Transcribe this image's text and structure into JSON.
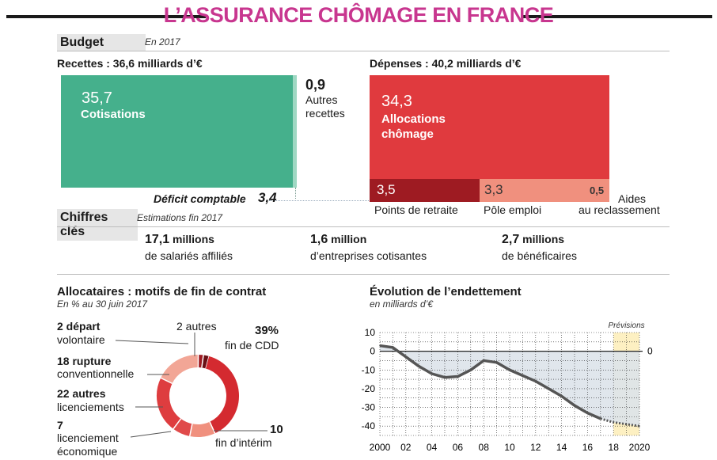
{
  "title": "L’ASSURANCE CHÔMAGE EN FRANCE",
  "budget": {
    "tag": "Budget",
    "note": "En 2017",
    "recettes_header": "Recettes : 36,6 milliards d’€",
    "depenses_header": "Dépenses : 40,2 milliards d’€",
    "cotisations": {
      "value": "35,7",
      "label": "Cotisations"
    },
    "autres_recettes": {
      "value": "0,9",
      "label_line1": "Autres",
      "label_line2": "recettes"
    },
    "deficit": {
      "label": "Déficit comptable",
      "value": "3,4"
    },
    "allocations": {
      "value": "34,3",
      "label_line1": "Allocations",
      "label_line2": "chômage"
    },
    "points_retraite": {
      "value": "3,5",
      "label": "Points de retraite"
    },
    "pole_emploi": {
      "value": "3,3",
      "label": "Pôle emploi"
    },
    "aides": {
      "value": "0,5",
      "label_line1": "Aides",
      "label_line2": "au reclassement"
    },
    "colors": {
      "recettes": "#45b08c",
      "allocations": "#e03a3e",
      "retraite": "#9e1b22",
      "pole": "#f0907e",
      "aides": "#f0907e"
    }
  },
  "chiffres": {
    "tag": "Chiffres clés",
    "note": "Estimations fin 2017",
    "items": [
      {
        "num": "17,1",
        "unit": " millions",
        "desc": "de salariés affiliés"
      },
      {
        "num": "1,6",
        "unit": " million",
        "desc": "d’entreprises cotisantes"
      },
      {
        "num": "2,7",
        "unit": " millions",
        "desc": "de bénéficaires"
      }
    ]
  },
  "chart_data": [
    {
      "type": "pie",
      "title": "Allocataires : motifs de fin de contrat",
      "subtitle": "En % au 30 juin 2017",
      "slices": [
        {
          "value": 39,
          "label_line1": "39%",
          "label_line2": "fin de CDD",
          "color": "#d42a30"
        },
        {
          "value": 10,
          "label_line1": "10",
          "label_line2": "fin d’intérim",
          "color": "#f0907e"
        },
        {
          "value": 7,
          "label_line1": "7",
          "label_line2": "licenciement",
          "label_line3": "économique",
          "color": "#e04a4a"
        },
        {
          "value": 22,
          "label_line1": "22 autres",
          "label_line2": "licenciements",
          "color": "#de3d3f"
        },
        {
          "value": 18,
          "label_line1": "18 rupture",
          "label_line2": "conventionnelle",
          "color": "#f2a696"
        },
        {
          "value": 2,
          "label_line1": "2 départ",
          "label_line2": "volontaire",
          "color": "#9e1b22"
        },
        {
          "value": 2,
          "label_line1": "2 autres",
          "label_line2": "",
          "color": "#6a1015"
        }
      ]
    },
    {
      "type": "line",
      "title": "Évolution de l’endettement",
      "subtitle": "en milliards d’€",
      "forecast_label": "Prévisions",
      "ylim": [
        -45,
        10
      ],
      "yticks": [
        10,
        0,
        -10,
        -20,
        -30,
        -40
      ],
      "xlim": [
        2000,
        2020
      ],
      "xticks": [
        2000,
        2002,
        2004,
        2006,
        2008,
        2010,
        2012,
        2014,
        2016,
        2018,
        2020
      ],
      "xtick_labels": [
        "2000",
        "02",
        "04",
        "06",
        "08",
        "10",
        "12",
        "14",
        "16",
        "18",
        "2020"
      ],
      "zero_label": "0",
      "forecast_start": 2017,
      "x": [
        2000,
        2001,
        2002,
        2003,
        2004,
        2005,
        2006,
        2007,
        2008,
        2009,
        2010,
        2011,
        2012,
        2013,
        2014,
        2015,
        2016,
        2017,
        2018,
        2019,
        2020
      ],
      "y": [
        3,
        2,
        -3,
        -8,
        -12,
        -14,
        -13.5,
        -10,
        -5,
        -6,
        -10,
        -13,
        -16,
        -20,
        -24,
        -29,
        -33,
        -36,
        -38,
        -39,
        -40
      ],
      "colors": {
        "line": "#555555",
        "area": "#dde3ea",
        "forecast_bg": "#fdf0c2",
        "forecast_area": "#f6e4b8"
      }
    }
  ],
  "allocataires_title": "Allocataires : motifs de fin de contrat",
  "allocataires_sub": "En % au 30 juin 2017",
  "endettement_title": "Évolution de l’endettement",
  "endettement_sub": "en milliards d’€"
}
